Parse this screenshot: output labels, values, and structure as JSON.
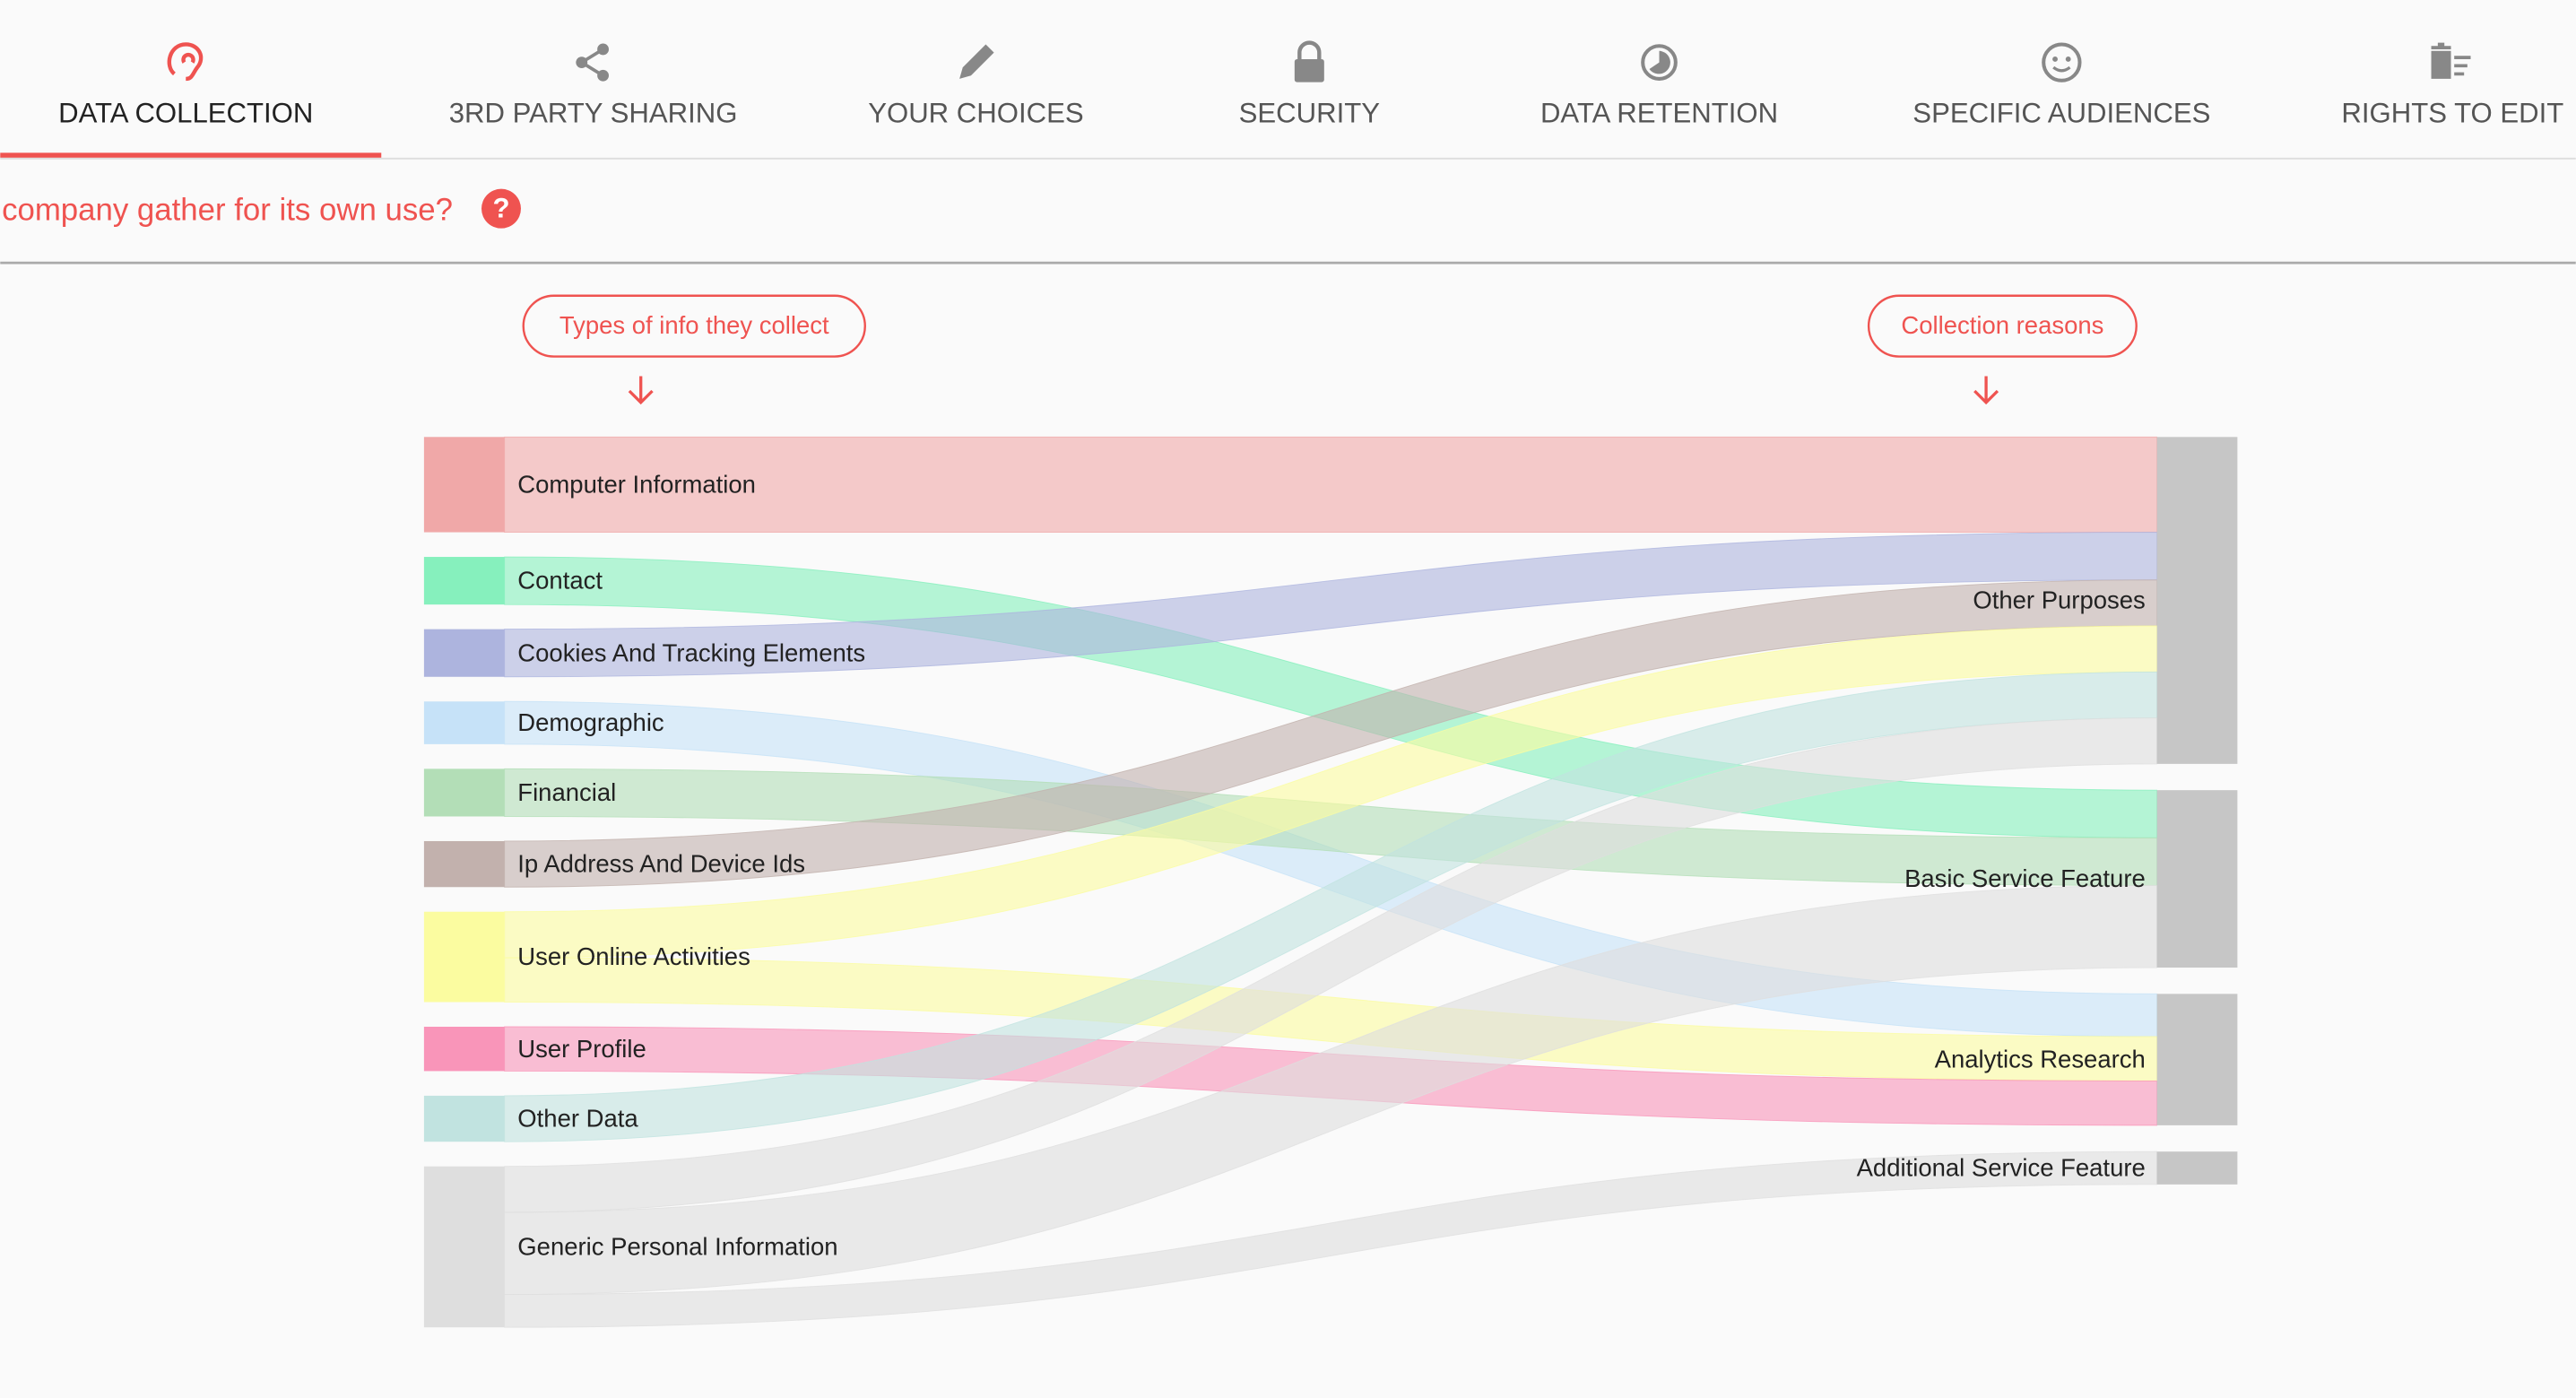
{
  "tabs": [
    {
      "label": "DATA COLLECTION"
    },
    {
      "label": "3RD PARTY SHARING"
    },
    {
      "label": "YOUR CHOICES"
    },
    {
      "label": "SECURITY"
    },
    {
      "label": "DATA RETENTION"
    },
    {
      "label": "SPECIFIC AUDIENCES"
    },
    {
      "label": "RIGHTS TO EDIT"
    }
  ],
  "question": "company gather for its own use?",
  "help_icon": "?",
  "chart_data": {
    "type": "sankey",
    "source_label": "Types of info they collect",
    "target_label": "Collection reasons",
    "sources": [
      {
        "name": "Computer Information",
        "color": "#f0a8a8"
      },
      {
        "name": "Contact",
        "color": "#86f0bd"
      },
      {
        "name": "Cookies And Tracking Elements",
        "color": "#adb4de"
      },
      {
        "name": "Demographic",
        "color": "#c6e2f8"
      },
      {
        "name": "Financial",
        "color": "#b3deb7"
      },
      {
        "name": "Ip Address And Device Ids",
        "color": "#c2b1ad"
      },
      {
        "name": "User Online Activities",
        "color": "#fbfca0"
      },
      {
        "name": "User Profile",
        "color": "#f995b9"
      },
      {
        "name": "Other Data",
        "color": "#c1e3e0"
      },
      {
        "name": "Generic Personal Information",
        "color": "#dedede"
      }
    ],
    "targets": [
      {
        "name": "Other Purposes"
      },
      {
        "name": "Basic Service Feature"
      },
      {
        "name": "Analytics Research"
      },
      {
        "name": "Additional Service Feature"
      }
    ],
    "target_color": "#c6c6c6",
    "links": [
      {
        "source": "Computer Information",
        "target": "Other Purposes",
        "value": 58
      },
      {
        "source": "Contact",
        "target": "Basic Service Feature",
        "value": 29
      },
      {
        "source": "Cookies And Tracking Elements",
        "target": "Other Purposes",
        "value": 29
      },
      {
        "source": "Demographic",
        "target": "Analytics Research",
        "value": 26
      },
      {
        "source": "Financial",
        "target": "Basic Service Feature",
        "value": 29
      },
      {
        "source": "Ip Address And Device Ids",
        "target": "Other Purposes",
        "value": 28
      },
      {
        "source": "User Online Activities",
        "target": "Other Purposes",
        "value": 28
      },
      {
        "source": "User Online Activities",
        "target": "Analytics Research",
        "value": 27
      },
      {
        "source": "User Profile",
        "target": "Analytics Research",
        "value": 27
      },
      {
        "source": "Other Data",
        "target": "Other Purposes",
        "value": 28
      },
      {
        "source": "Generic Personal Information",
        "target": "Other Purposes",
        "value": 28
      },
      {
        "source": "Generic Personal Information",
        "target": "Basic Service Feature",
        "value": 50
      },
      {
        "source": "Generic Personal Information",
        "target": "Additional Service Feature",
        "value": 20
      }
    ]
  }
}
